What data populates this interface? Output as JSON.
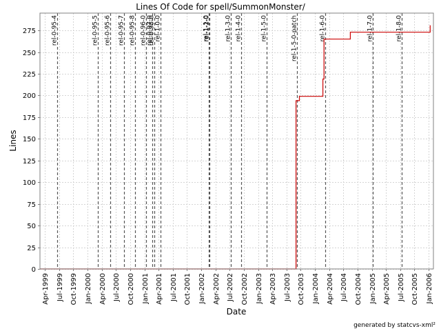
{
  "chart_data": {
    "type": "line",
    "title": "Lines Of Code for spell/SummonMonster/",
    "xlabel": "Date",
    "ylabel": "Lines",
    "footer": "generated by statcvs-xml²",
    "xlim": [
      "1999-03-01",
      "2006-01-31"
    ],
    "ylim": [
      0,
      295
    ],
    "y_ticks": [
      0,
      25,
      50,
      75,
      100,
      125,
      150,
      175,
      200,
      225,
      250,
      275
    ],
    "x_ticks": [
      {
        "label": "Apr-1999",
        "date": "1999-04-01"
      },
      {
        "label": "Jul-1999",
        "date": "1999-07-01"
      },
      {
        "label": "Oct-1999",
        "date": "1999-10-01"
      },
      {
        "label": "Jan-2000",
        "date": "2000-01-01"
      },
      {
        "label": "Apr-2000",
        "date": "2000-04-01"
      },
      {
        "label": "Jul-2000",
        "date": "2000-07-01"
      },
      {
        "label": "Oct-2000",
        "date": "2000-10-01"
      },
      {
        "label": "Jan-2001",
        "date": "2001-01-01"
      },
      {
        "label": "Apr-2001",
        "date": "2001-04-01"
      },
      {
        "label": "Jul-2001",
        "date": "2001-07-01"
      },
      {
        "label": "Oct-2001",
        "date": "2001-10-01"
      },
      {
        "label": "Jan-2002",
        "date": "2002-01-01"
      },
      {
        "label": "Apr-2002",
        "date": "2002-04-01"
      },
      {
        "label": "Jul-2002",
        "date": "2002-07-01"
      },
      {
        "label": "Oct-2002",
        "date": "2002-10-01"
      },
      {
        "label": "Jan-2003",
        "date": "2003-01-01"
      },
      {
        "label": "Apr-2003",
        "date": "2003-04-01"
      },
      {
        "label": "Jul-2003",
        "date": "2003-07-01"
      },
      {
        "label": "Oct-2003",
        "date": "2003-10-01"
      },
      {
        "label": "Jan-2004",
        "date": "2004-01-01"
      },
      {
        "label": "Apr-2004",
        "date": "2004-04-01"
      },
      {
        "label": "Jul-2004",
        "date": "2004-07-01"
      },
      {
        "label": "Oct-2004",
        "date": "2004-10-01"
      },
      {
        "label": "Jan-2005",
        "date": "2005-01-01"
      },
      {
        "label": "Apr-2005",
        "date": "2005-04-01"
      },
      {
        "label": "Jul-2005",
        "date": "2005-07-01"
      },
      {
        "label": "Oct-2005",
        "date": "2005-10-01"
      },
      {
        "label": "Jan-2006",
        "date": "2006-01-01"
      }
    ],
    "tags": [
      {
        "label": "rel-0-95-4",
        "date": "1999-06-19"
      },
      {
        "label": "rel-0-95-5",
        "date": "2000-03-05"
      },
      {
        "label": "rel-0-95-6",
        "date": "2000-05-26"
      },
      {
        "label": "rel-0-95-7",
        "date": "2000-08-23"
      },
      {
        "label": "rel-0-95-8",
        "date": "2000-11-01"
      },
      {
        "label": "rel-0-96-0",
        "date": "2001-01-10"
      },
      {
        "label": "rel-0-97-0",
        "date": "2001-02-20"
      },
      {
        "label": "rel-0-98-0",
        "date": "2001-03-07"
      },
      {
        "label": "rel-1-0-0",
        "date": "2001-04-14"
      },
      {
        "label": "rel-1-1-0",
        "date": "2002-02-16"
      },
      {
        "label": "rel-1-2-0",
        "date": "2002-02-20"
      },
      {
        "label": "rel-1-3-0",
        "date": "2002-07-11"
      },
      {
        "label": "rel-1-4-0",
        "date": "2002-09-15"
      },
      {
        "label": "rel-1-5-0",
        "date": "2003-02-23"
      },
      {
        "label": "rel-1-5-0-patch",
        "date": "2003-09-09"
      },
      {
        "label": "rel-1-6-0",
        "date": "2004-03-05"
      },
      {
        "label": "rel-1-7-0",
        "date": "2005-01-05"
      },
      {
        "label": "rel-1-8-0",
        "date": "2005-07-12"
      }
    ],
    "series": [
      {
        "color": "#cc0000",
        "points": [
          {
            "x": "1999-03-01",
            "y": 0
          },
          {
            "x": "2003-09-01",
            "y": 0
          },
          {
            "x": "2003-09-01",
            "y": 194
          },
          {
            "x": "2003-09-23",
            "y": 194
          },
          {
            "x": "2003-09-23",
            "y": 199
          },
          {
            "x": "2004-02-21",
            "y": 199
          },
          {
            "x": "2004-02-21",
            "y": 219
          },
          {
            "x": "2004-02-28",
            "y": 219
          },
          {
            "x": "2004-02-28",
            "y": 265
          },
          {
            "x": "2004-08-15",
            "y": 265
          },
          {
            "x": "2004-08-15",
            "y": 273
          },
          {
            "x": "2006-01-10",
            "y": 273
          },
          {
            "x": "2006-01-10",
            "y": 281
          }
        ]
      }
    ]
  }
}
